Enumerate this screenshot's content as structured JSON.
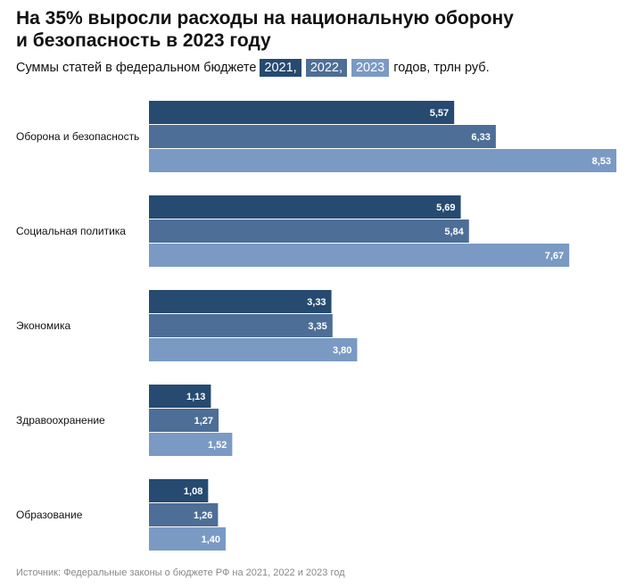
{
  "title": {
    "line1": "На 35% выросли расходы на национальную оборону",
    "line2": "и безопасность в 2023 году"
  },
  "subtitle": {
    "prefix": "Суммы статей в федеральном бюджете",
    "years": [
      "2021,",
      "2022,",
      "2023"
    ],
    "suffix": "годов, трлн руб."
  },
  "colors": {
    "2021": "#264a70",
    "2022": "#4d6e96",
    "2023": "#7a9ac4"
  },
  "chart_data": {
    "type": "bar",
    "orientation": "horizontal",
    "categories": [
      "Оборона и безопасность",
      "Социальная политика",
      "Экономика",
      "Здравоохранение",
      "Образование"
    ],
    "series": [
      {
        "name": "2021",
        "values": [
          5.57,
          5.69,
          3.33,
          1.13,
          1.08
        ],
        "labels": [
          "5,57",
          "5,69",
          "3,33",
          "1,13",
          "1,08"
        ]
      },
      {
        "name": "2022",
        "values": [
          6.33,
          5.84,
          3.35,
          1.27,
          1.26
        ],
        "labels": [
          "6,33",
          "5,84",
          "3,35",
          "1,27",
          "1,26"
        ]
      },
      {
        "name": "2023",
        "values": [
          8.53,
          7.67,
          3.8,
          1.52,
          1.4
        ],
        "labels": [
          "8,53",
          "7,67",
          "3,80",
          "1,52",
          "1,40"
        ]
      }
    ],
    "xlim": [
      0,
      8.53
    ],
    "grid": false,
    "legend": "inline-in-subtitle"
  },
  "source": "Источник: Федеральные законы о бюджете РФ на 2021, 2022 и 2023 год"
}
